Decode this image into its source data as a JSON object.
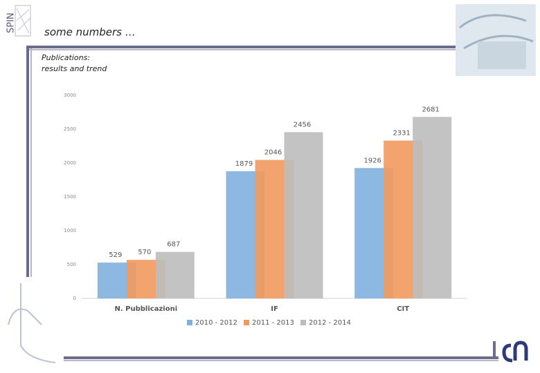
{
  "slide": {
    "logo": "SPIN",
    "title": "some numbers …",
    "subtitle_lines": [
      "Publications:",
      "results and trend"
    ]
  },
  "chart_data": {
    "type": "bar",
    "categories": [
      "N. Pubblicazioni",
      "IF",
      "CIT"
    ],
    "series": [
      {
        "name": "2010 - 2012",
        "color": "#7fb0de",
        "values": [
          529,
          1879,
          1926
        ]
      },
      {
        "name": "2011 - 2013",
        "color": "#f29a5e",
        "values": [
          570,
          2046,
          2331
        ]
      },
      {
        "name": "2012 - 2014",
        "color": "#bdbdbd",
        "values": [
          687,
          2456,
          2681
        ]
      }
    ],
    "ylim": [
      0,
      3000
    ],
    "yticks": [
      0,
      500,
      1000,
      1500,
      2000,
      2500,
      3000
    ],
    "grid": false,
    "legend": "bottom"
  }
}
